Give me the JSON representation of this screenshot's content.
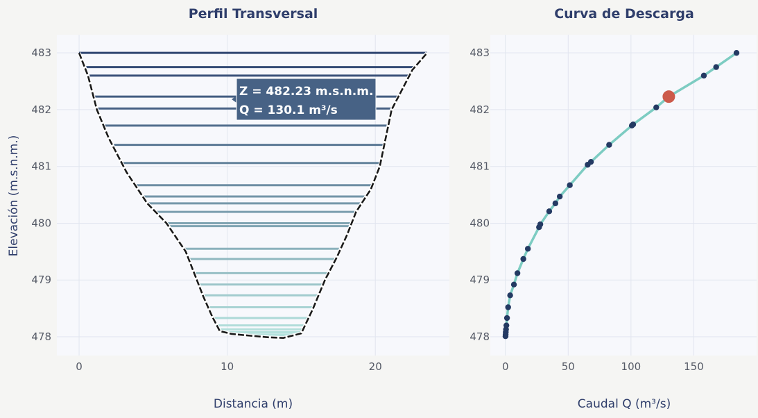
{
  "chart_data": [
    {
      "type": "line",
      "title": "Perfil Transversal",
      "xlabel": "Distancia (m)",
      "ylabel": "Elevación (m.s.n.m.)",
      "xlim": [
        -1.5,
        25
      ],
      "ylim": [
        477.67,
        483.32
      ],
      "x_ticks": [
        "0",
        "10",
        "20"
      ],
      "y_ticks": [
        "478",
        "479",
        "480",
        "481",
        "482",
        "483"
      ],
      "grid": true,
      "profile": {
        "x": [
          0,
          0.6,
          1.2,
          2.0,
          3.2,
          4.6,
          5.9,
          7.2,
          8.4,
          9.0,
          9.5,
          10.3,
          11.5,
          12.8,
          13.8,
          15.0,
          15.8,
          16.6,
          17.4,
          18.1,
          18.7,
          19.7,
          20.3,
          21.1,
          22.5,
          23.5
        ],
        "y": [
          483.0,
          482.6,
          482.0,
          481.5,
          480.9,
          480.35,
          480.0,
          479.5,
          478.7,
          478.35,
          478.1,
          478.05,
          478.02,
          477.99,
          477.98,
          478.06,
          478.5,
          479.0,
          479.4,
          479.8,
          480.2,
          480.6,
          481.0,
          482.0,
          482.7,
          483.0
        ]
      },
      "water_levels": [
        483.0,
        482.75,
        482.6,
        482.23,
        482.02,
        481.72,
        481.38,
        481.06,
        480.67,
        480.47,
        480.35,
        480.2,
        480.0,
        479.95,
        479.55,
        479.37,
        479.12,
        478.92,
        478.73,
        478.52,
        478.33,
        478.2,
        478.13,
        478.08,
        478.04,
        478.01
      ],
      "tooltip": {
        "line1": "Z = 482.23 m.s.n.m.",
        "line2": "Q = 130.1 m³/s",
        "z": 482.23
      }
    },
    {
      "type": "scatter",
      "title": "Curva de Descarga",
      "xlabel": "Caudal Q (m³/s)",
      "ylabel": "",
      "xlim": [
        -12,
        200
      ],
      "ylim": [
        477.67,
        483.32
      ],
      "x_ticks": [
        "0",
        "50",
        "100",
        "150"
      ],
      "y_ticks": [
        "478",
        "479",
        "480",
        "481",
        "482",
        "483"
      ],
      "grid": true,
      "points": {
        "q": [
          0.1,
          0.2,
          0.3,
          0.5,
          0.8,
          1.3,
          2.2,
          3.8,
          6.8,
          9.6,
          14.3,
          17.9,
          26.8,
          27.8,
          34.9,
          39.8,
          43.3,
          51.3,
          65.5,
          68.1,
          82.6,
          100.7,
          101.7,
          120.1,
          130.1,
          158.0,
          167.8,
          184.0
        ],
        "z": [
          478.01,
          478.04,
          478.08,
          478.13,
          478.2,
          478.33,
          478.52,
          478.73,
          478.92,
          479.12,
          479.37,
          479.55,
          479.93,
          479.98,
          480.21,
          480.35,
          480.47,
          480.67,
          481.03,
          481.08,
          481.38,
          481.72,
          481.74,
          482.04,
          482.23,
          482.6,
          482.75,
          483.0
        ]
      },
      "highlight": {
        "q": 130.1,
        "z": 482.23
      },
      "curve_color": "#7dccc2",
      "point_color": "#243a63",
      "highlight_color": "#cc5a4a"
    }
  ]
}
